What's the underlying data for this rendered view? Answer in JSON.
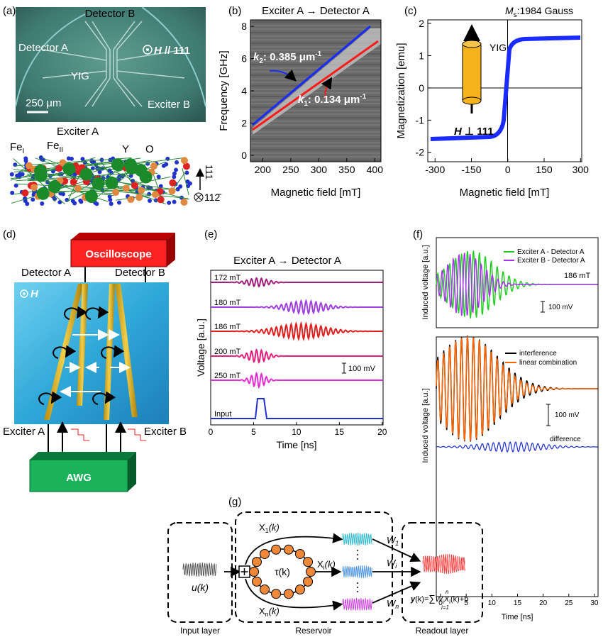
{
  "a": {
    "label": "(a)",
    "detector_b": "Detector B",
    "detector_a": "Detector A",
    "field": {
      "symbol": "H",
      "text": " // 111"
    },
    "yig": "YIG",
    "scale_bar": "250 μm",
    "exciter_b": "Exciter B",
    "exciter_a": "Exciter A",
    "fe_1": {
      "text": "Fe",
      "sub": "I"
    },
    "fe_2": {
      "text": "Fe",
      "sub": "II"
    },
    "y": "Y",
    "o": "O",
    "axis_up": "111",
    "axis_in": "112̄"
  },
  "b": {
    "label": "(b)",
    "title": "Exciter A → Detector A",
    "xlabel": "Magnetic field [mT]",
    "ylabel": "Frequency [GHz]",
    "xlim": [
      178,
      411
    ],
    "ylim": [
      -0.4,
      8.4
    ],
    "xticks": [
      200,
      250,
      300,
      350,
      400
    ],
    "yticks": [
      0,
      2,
      4,
      6,
      8
    ],
    "k2": {
      "k": "k",
      "sub": "2",
      "text": ": 0.385 μm",
      "sup": "-1"
    },
    "k1": {
      "k": "k",
      "sub": "1",
      "text": ": 0.134 μm",
      "sup": "-1"
    }
  },
  "c": {
    "label": "(c)",
    "title": {
      "text": "M",
      "sub": "s",
      "rest": ":1984 Gauss"
    },
    "xlabel": "Magnetic field [mT]",
    "ylabel": "Magnetization [emu]",
    "xlim": [
      -330,
      305
    ],
    "ylim": [
      -2.29,
      2.11
    ],
    "xticks": [
      -300,
      -150,
      0,
      150,
      300
    ],
    "yticks": [
      -2,
      -1,
      0,
      1,
      2
    ],
    "yig": "YIG",
    "field": {
      "symbol": "H",
      "text": " ⊥ 111"
    }
  },
  "d": {
    "label": "(d)",
    "oscilloscope": "Oscilloscope",
    "detector_a": "Detector A",
    "detector_b": "Detector B",
    "field": "H",
    "exciter_a": "Exciter A",
    "exciter_b": "Exciter B",
    "awg": "AWG"
  },
  "e": {
    "label": "(e)",
    "title": "Exciter A → Detector A",
    "traces": [
      "172 mT",
      "180 mT",
      "186 mT",
      "200 mT",
      "250 mT",
      "Input"
    ],
    "scale_bar": "100 mV",
    "ylabel": "Voltage [a.u.]",
    "xlabel": "Time [ns]",
    "xlim": [
      0,
      20.1
    ],
    "xticks": [
      0,
      5,
      10,
      15,
      20
    ]
  },
  "f": {
    "label": "(f)",
    "top": {
      "legend": [
        "Exciter A - Detector A",
        "Exciter B - Detector A"
      ],
      "field": "186 mT",
      "scale_bar": "100 mV",
      "ylabel": "Induced voltage [a.u.]"
    },
    "bottom": {
      "legend": [
        "interference",
        "linear combination"
      ],
      "scale_bar": "100 mV",
      "difference": "difference",
      "ylabel": "Induced voltage [a.u.]"
    },
    "xlabel": "Time [ns]",
    "xlim": [
      -0.83,
      30.7
    ],
    "xticks": [
      0,
      5,
      10,
      15,
      20,
      25,
      30
    ]
  },
  "g": {
    "label": "(g)",
    "input_layer": "Input layer",
    "reservoir": "Reservoir",
    "readout_layer": "Readout layer",
    "u": "u(k)",
    "tau": "τ(k)",
    "x1": {
      "text": "X",
      "sub": "1",
      "rest": "(k)"
    },
    "xi": {
      "text": "X",
      "sub": "i",
      "rest": "(k)"
    },
    "xn": {
      "text": "X",
      "sub": "n",
      "rest": "(k)"
    },
    "w1": {
      "text": "W",
      "sub": "1"
    },
    "wi": {
      "text": "W",
      "sub": "i"
    },
    "wn": {
      "text": "W",
      "sub": "n"
    },
    "output": {
      "y": "y",
      "eq": "(k)=",
      "sum": "∑",
      "top": "n",
      "bottom": "i=1",
      "w": "W",
      "wsub": "i",
      "x": "X",
      "xsub": "i",
      "rest": "(k)+b"
    }
  }
}
